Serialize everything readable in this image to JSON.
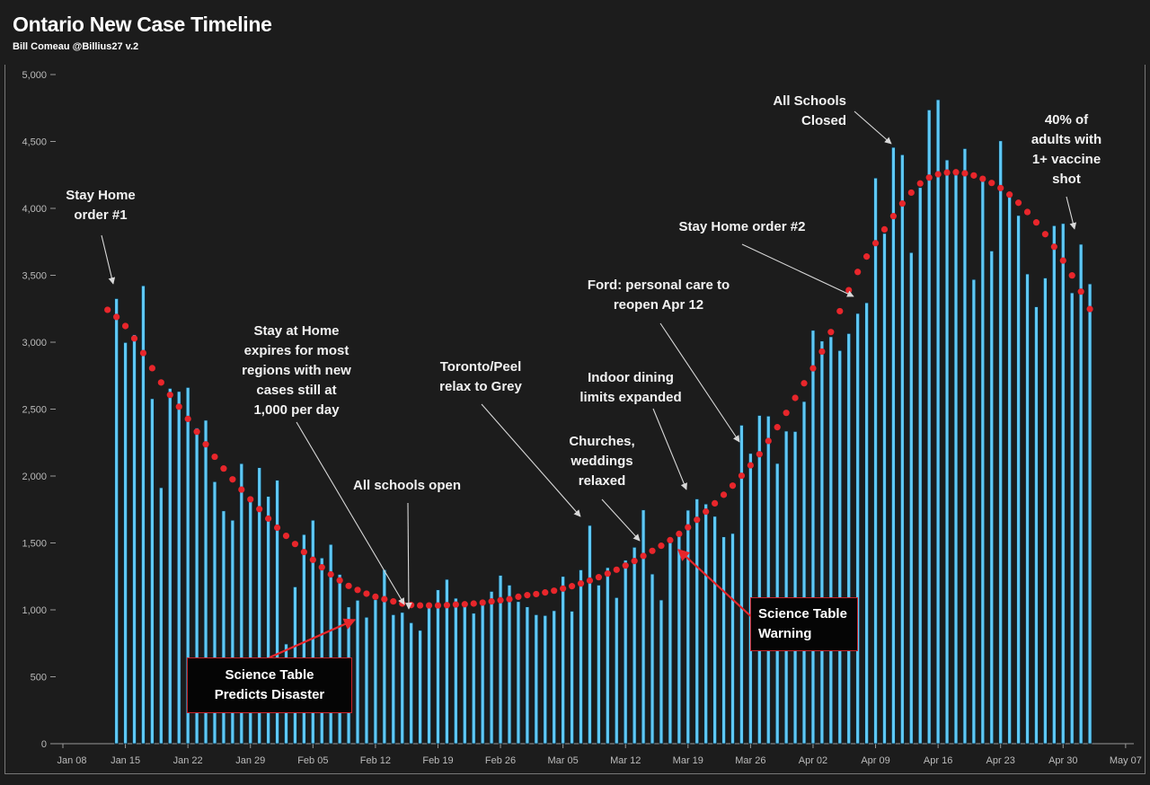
{
  "header": {
    "title": "Ontario New Case Timeline",
    "subtitle": "Bill Comeau @Billius27 v.2"
  },
  "colors": {
    "background": "#1c1c1c",
    "bar": "#5ec8f5",
    "bar_outline": "#0c2a3a",
    "average_dots": "#e8262b",
    "annotation_box_border": "#c8242a",
    "arrow": "#d8d8d8",
    "red_arrow": "#e8262b"
  },
  "chart_data": {
    "type": "bar",
    "title": "Ontario New Case Timeline",
    "xlabel": "",
    "ylabel": "",
    "ylim": [
      0,
      5000
    ],
    "grid": false,
    "y_ticks": [
      "0",
      "500",
      "1,000",
      "1,500",
      "2,000",
      "2,500",
      "3,000",
      "3,500",
      "4,000",
      "4,500",
      "5,000"
    ],
    "y_tick_values": [
      0,
      500,
      1000,
      1500,
      2000,
      2500,
      3000,
      3500,
      4000,
      4500,
      5000
    ],
    "x_ticks": [
      "Jan 08",
      "Jan 15",
      "Jan 22",
      "Jan 29",
      "Feb 05",
      "Feb 12",
      "Feb 19",
      "Feb 26",
      "Mar 05",
      "Mar 12",
      "Mar 19",
      "Mar 26",
      "Apr 02",
      "Apr 09",
      "Apr 16",
      "Apr 23",
      "Apr 30",
      "May 07"
    ],
    "series": [
      {
        "name": "Daily new cases",
        "type": "bar",
        "start_date": "Jan 14",
        "values": [
          3326,
          2998,
          3056,
          3422,
          2578,
          1913,
          2655,
          2632,
          2662,
          2359,
          2417,
          1958,
          1740,
          1670,
          2093,
          1837,
          2063,
          1848,
          1969,
          745,
          1172,
          1563,
          1670,
          1388,
          1489,
          1265,
          1022,
          1072,
          945,
          1076,
          1300,
          964,
          981,
          904,
          847,
          1038,
          1150,
          1228,
          1087,
          1058,
          975,
          1054,
          1138,
          1258,
          1185,
          1062,
          1023,
          964,
          958,
          994,
          1250,
          990,
          1299,
          1631,
          1185,
          1316,
          1092,
          1371,
          1468,
          1747,
          1268,
          1074,
          1508,
          1553,
          1745,
          1829,
          1791,
          1699,
          1546,
          1571,
          2380,
          2169,
          2453,
          2448,
          2094,
          2336,
          2333,
          2557,
          3089,
          3009,
          3041,
          2938,
          3065,
          3215,
          3295,
          4227,
          3813,
          4456,
          4401,
          3670,
          4156,
          4736,
          4812,
          4362,
          4250,
          4447,
          3469,
          4212,
          3682,
          4505,
          4094,
          3947,
          3510,
          3265,
          3480,
          3871,
          3887,
          3369,
          3732,
          3436
        ]
      },
      {
        "name": "7-day average",
        "type": "scatter",
        "start_date": "Jan 13",
        "values": [
          3242,
          3189,
          3121,
          3028,
          2919,
          2806,
          2699,
          2606,
          2518,
          2427,
          2331,
          2237,
          2144,
          2056,
          1975,
          1899,
          1826,
          1753,
          1682,
          1614,
          1553,
          1492,
          1432,
          1374,
          1318,
          1265,
          1220,
          1179,
          1149,
          1121,
          1098,
          1080,
          1063,
          1047,
          1036,
          1033,
          1033,
          1033,
          1035,
          1040,
          1042,
          1047,
          1054,
          1063,
          1072,
          1080,
          1098,
          1110,
          1118,
          1130,
          1143,
          1159,
          1177,
          1197,
          1219,
          1244,
          1271,
          1300,
          1331,
          1365,
          1403,
          1441,
          1479,
          1521,
          1568,
          1617,
          1673,
          1734,
          1796,
          1860,
          1928,
          2002,
          2080,
          2163,
          2262,
          2365,
          2472,
          2584,
          2693,
          2805,
          2930,
          3076,
          3232,
          3389,
          3525,
          3640,
          3740,
          3843,
          3942,
          4036,
          4118,
          4186,
          4230,
          4255,
          4268,
          4270,
          4262,
          4246,
          4221,
          4190,
          4152,
          4103,
          4042,
          3973,
          3895,
          3807,
          3713,
          3610,
          3499,
          3378,
          3248
        ]
      }
    ],
    "annotations": [
      {
        "id": "stay-home-1",
        "lines": [
          "Stay Home",
          "order #1"
        ]
      },
      {
        "id": "stay-home-expires",
        "lines": [
          "Stay at Home",
          "expires for most",
          "regions with new",
          "cases still at",
          "1,000 per day"
        ]
      },
      {
        "id": "schools-open",
        "lines": [
          "All schools open"
        ]
      },
      {
        "id": "toronto-peel",
        "lines": [
          "Toronto/Peel",
          "relax to Grey"
        ]
      },
      {
        "id": "churches",
        "lines": [
          "Churches,",
          "weddings",
          "relaxed"
        ]
      },
      {
        "id": "indoor-dining",
        "lines": [
          "Indoor dining",
          "limits expanded"
        ]
      },
      {
        "id": "ford-personal-care",
        "lines": [
          "Ford: personal care to",
          "reopen Apr 12"
        ]
      },
      {
        "id": "stay-home-2",
        "lines": [
          "Stay Home order #2"
        ]
      },
      {
        "id": "schools-closed",
        "lines": [
          "All Schools",
          "Closed"
        ]
      },
      {
        "id": "vaccine-40",
        "lines": [
          "40% of",
          "adults with",
          "1+ vaccine",
          "shot"
        ]
      },
      {
        "id": "science-table-disaster",
        "lines": [
          "Science Table",
          "Predicts Disaster"
        ]
      },
      {
        "id": "science-table-warning",
        "lines": [
          "Science Table",
          "Warning"
        ]
      }
    ]
  }
}
